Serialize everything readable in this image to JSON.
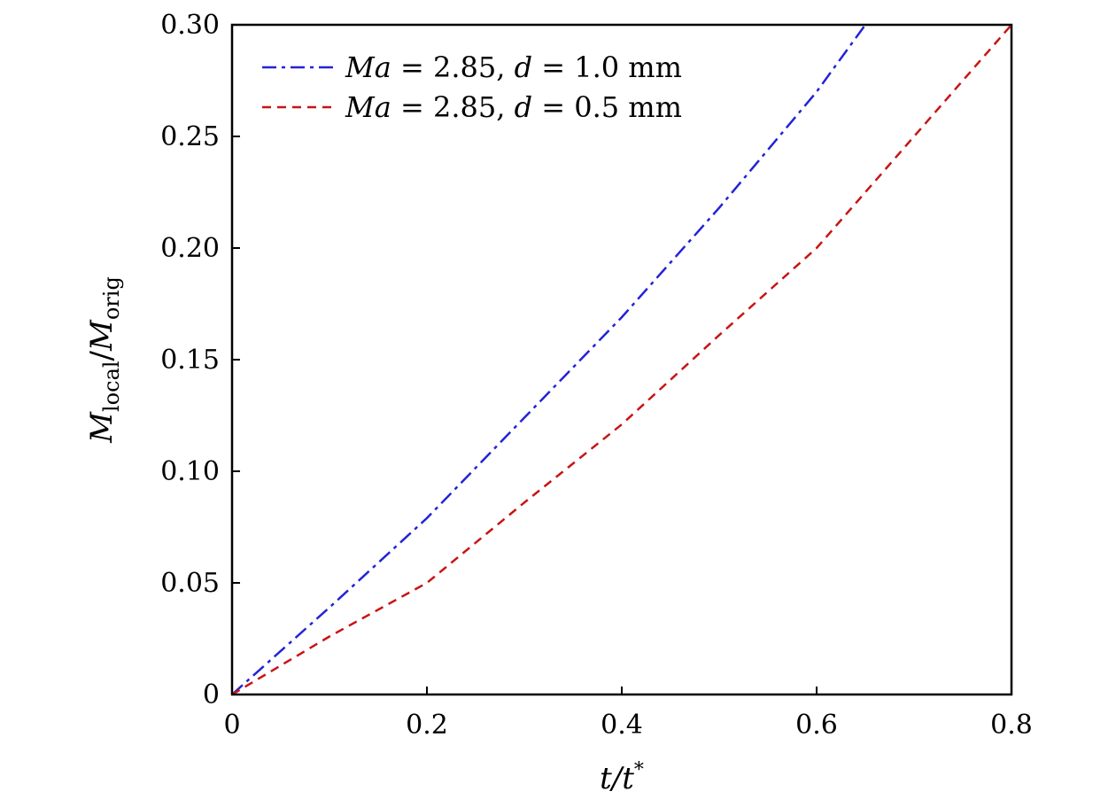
{
  "chart_data": {
    "type": "line",
    "title": "",
    "xlabel": "t/t*",
    "ylabel": "M_local/M_orig",
    "xlabel_parts": {
      "main": "t/t",
      "sup": "*"
    },
    "ylabel_parts": {
      "m1": "M",
      "sub1": "local",
      "slash": "/",
      "m2": "M",
      "sub2": "orig"
    },
    "xlim": [
      0,
      0.8
    ],
    "ylim": [
      0,
      0.3
    ],
    "xticks": [
      0,
      0.2,
      0.4,
      0.6,
      0.8
    ],
    "xtick_labels": [
      "0",
      "0.2",
      "0.4",
      "0.6",
      "0.8"
    ],
    "yticks": [
      0,
      0.05,
      0.1,
      0.15,
      0.2,
      0.25,
      0.3
    ],
    "ytick_labels": [
      "0",
      "0.05",
      "0.10",
      "0.15",
      "0.20",
      "0.25",
      "0.30"
    ],
    "grid": false,
    "legend_position": "top-left",
    "series": [
      {
        "name": "Ma = 2.85, d = 1.0 mm",
        "label_parts": {
          "ma": "Ma",
          "eq1": " = 2.85, ",
          "d": "d",
          "eq2": " = 1.0 mm"
        },
        "color": "#2323d6",
        "style": "dashdot",
        "x": [
          0,
          0.1,
          0.2,
          0.3,
          0.4,
          0.5,
          0.6,
          0.65
        ],
        "y": [
          0,
          0.039,
          0.079,
          0.124,
          0.169,
          0.218,
          0.27,
          0.3
        ]
      },
      {
        "name": "Ma = 2.85, d = 0.5 mm",
        "label_parts": {
          "ma": "Ma",
          "eq1": " = 2.85, ",
          "d": "d",
          "eq2": " = 0.5 mm"
        },
        "color": "#c81414",
        "style": "dashed",
        "x": [
          0,
          0.1,
          0.2,
          0.3,
          0.4,
          0.5,
          0.6,
          0.7,
          0.8
        ],
        "y": [
          0,
          0.026,
          0.05,
          0.086,
          0.121,
          0.161,
          0.2,
          0.25,
          0.3
        ]
      }
    ]
  }
}
